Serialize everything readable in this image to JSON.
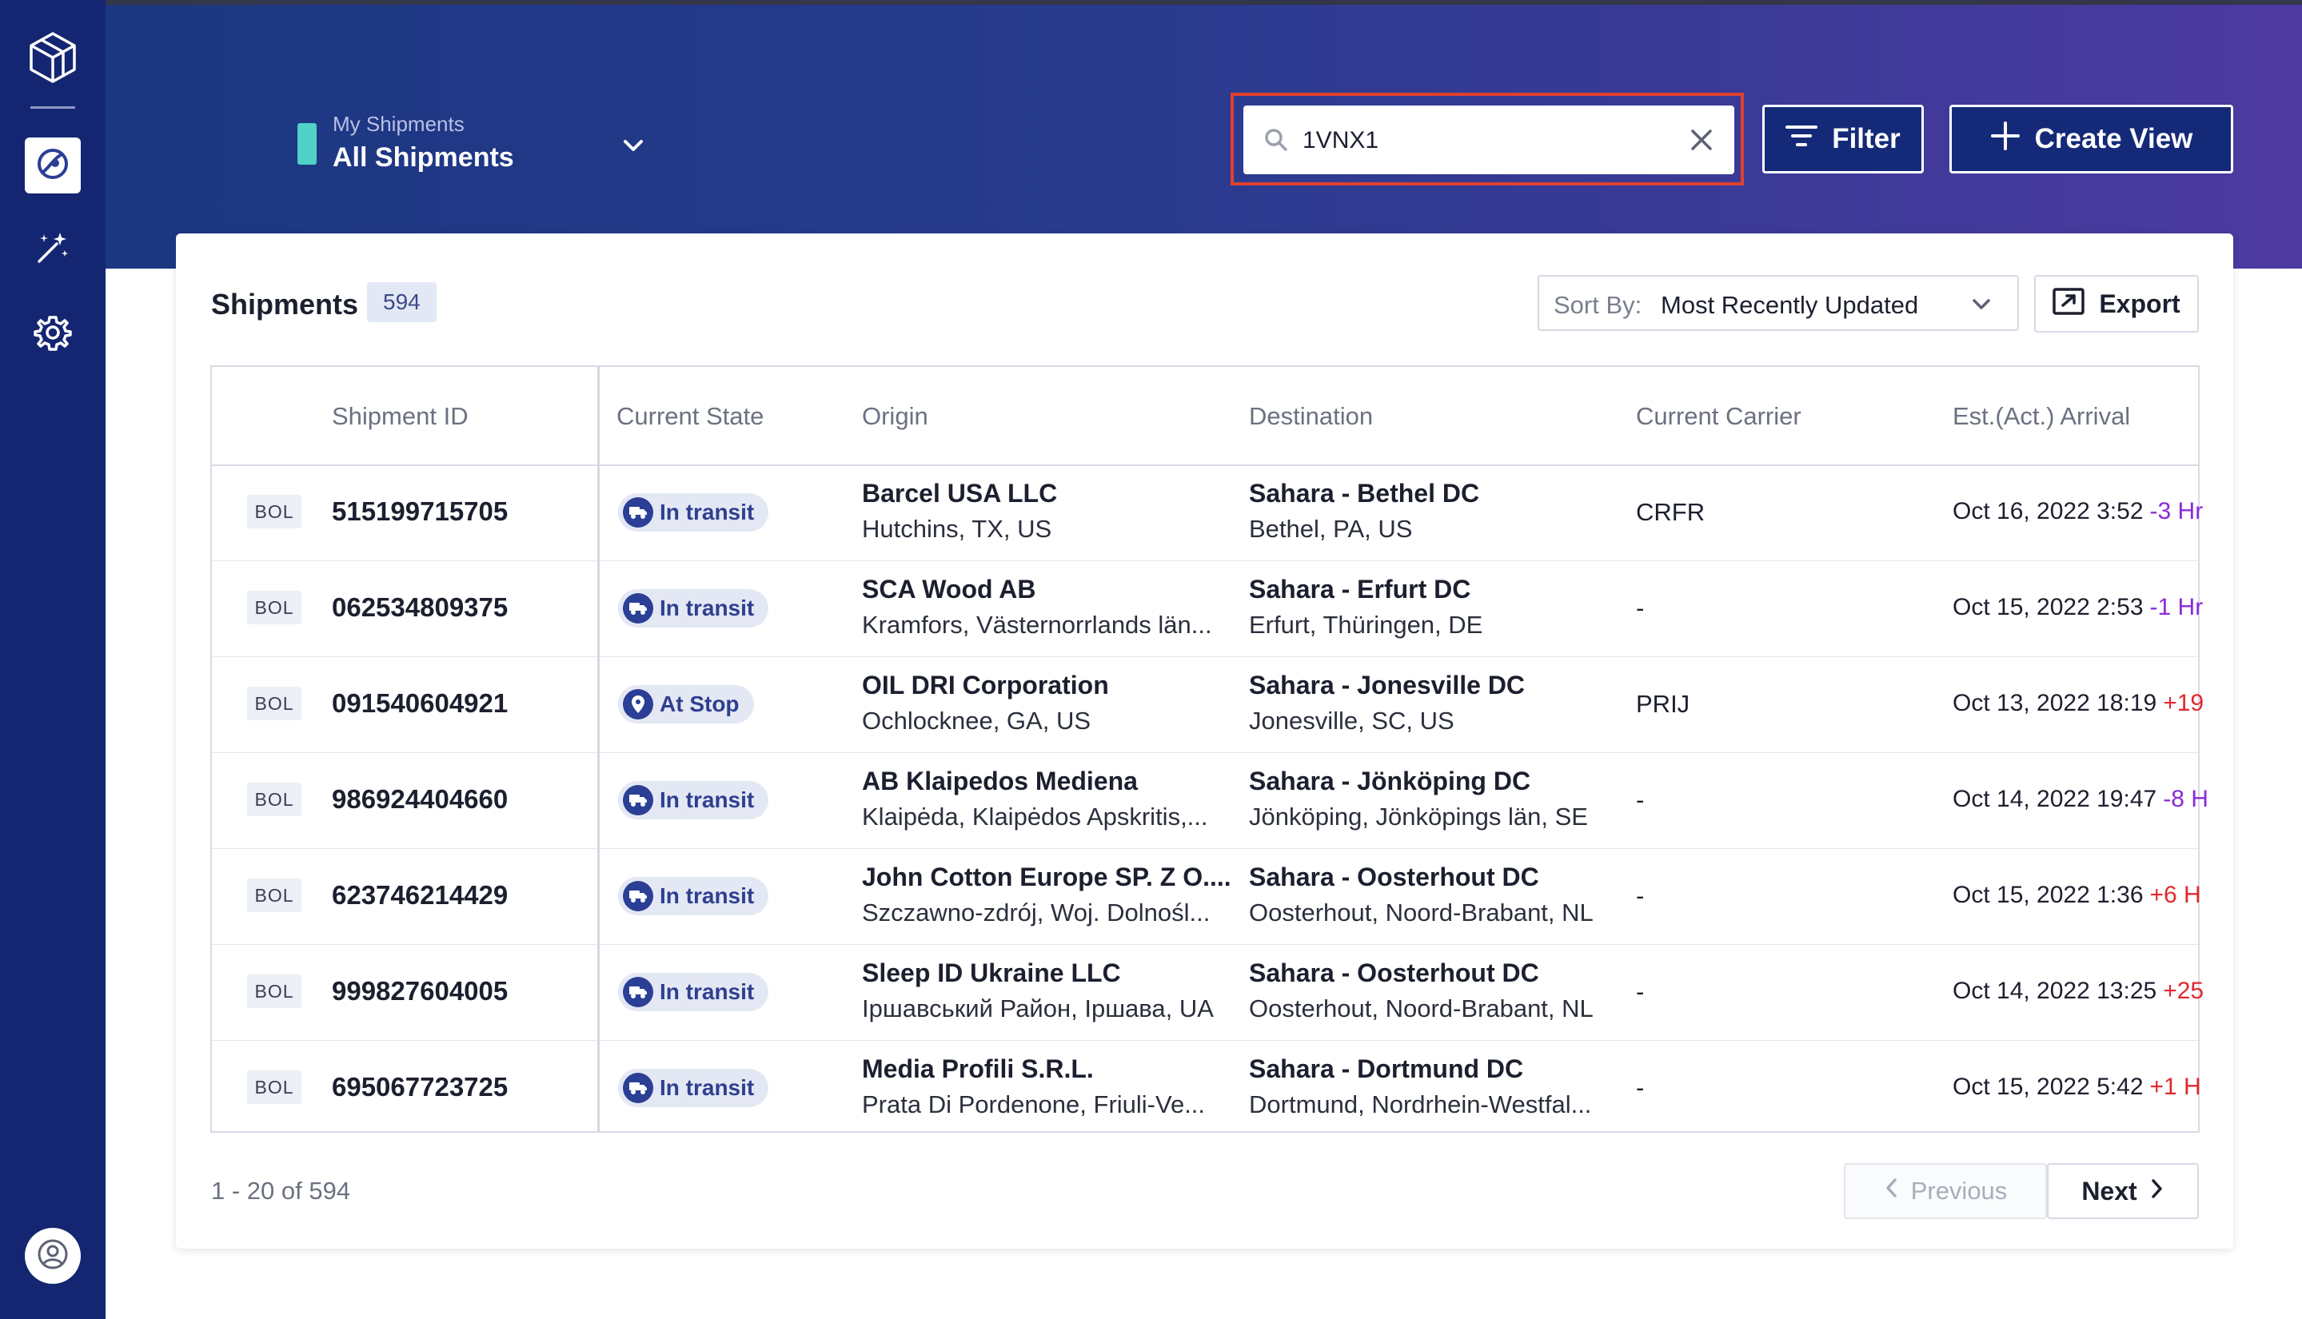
{
  "header": {
    "view_subtitle": "My Shipments",
    "view_title": "All Shipments",
    "search": {
      "value": "1VNX1",
      "placeholder": ""
    },
    "filter_label": "Filter",
    "create_view_label": "Create View"
  },
  "shipments": {
    "title": "Shipments",
    "count": "594",
    "sort_label": "Sort By:",
    "sort_value": "Most Recently Updated",
    "export_label": "Export"
  },
  "table": {
    "columns": [
      "Shipment ID",
      "Current State",
      "Origin",
      "Destination",
      "Current Carrier",
      "Est.(Act.) Arrival"
    ],
    "rows": [
      {
        "type": "BOL",
        "id": "515199715705",
        "state": "In transit",
        "state_icon": "truck-icon",
        "origin_name": "Barcel USA LLC",
        "origin_loc": "Hutchins, TX, US",
        "dest_name": "Sahara - Bethel DC",
        "dest_loc": "Bethel, PA, US",
        "carrier": "CRFR",
        "arrival": "Oct 16, 2022 3:52",
        "delta": "-3 Hr"
      },
      {
        "type": "BOL",
        "id": "062534809375",
        "state": "In transit",
        "state_icon": "truck-icon",
        "origin_name": "SCA Wood AB",
        "origin_loc": "Kramfors, Västernorrlands län...",
        "dest_name": "Sahara - Erfurt DC",
        "dest_loc": "Erfurt, Thüringen, DE",
        "carrier": "-",
        "arrival": "Oct 15, 2022 2:53",
        "delta": "-1 Hr"
      },
      {
        "type": "BOL",
        "id": "091540604921",
        "state": "At Stop",
        "state_icon": "location-pin-icon",
        "origin_name": "OIL DRI Corporation",
        "origin_loc": "Ochlocknee, GA, US",
        "dest_name": "Sahara - Jonesville DC",
        "dest_loc": "Jonesville, SC, US",
        "carrier": "PRIJ",
        "arrival": "Oct 13, 2022 18:19",
        "delta": "+19"
      },
      {
        "type": "BOL",
        "id": "986924404660",
        "state": "In transit",
        "state_icon": "truck-icon",
        "origin_name": "AB Klaipedos Mediena",
        "origin_loc": "Klaipėda, Klaipėdos Apskritis,...",
        "dest_name": "Sahara - Jönköping DC",
        "dest_loc": "Jönköping, Jönköpings län, SE",
        "carrier": "-",
        "arrival": "Oct 14, 2022 19:47",
        "delta": "-8 H"
      },
      {
        "type": "BOL",
        "id": "623746214429",
        "state": "In transit",
        "state_icon": "truck-icon",
        "origin_name": "John Cotton Europe SP. Z O....",
        "origin_loc": "Szczawno-zdrój, Woj. Dolnośl...",
        "dest_name": "Sahara - Oosterhout DC",
        "dest_loc": "Oosterhout, Noord-Brabant, NL",
        "carrier": "-",
        "arrival": "Oct 15, 2022 1:36",
        "delta": "+6 H"
      },
      {
        "type": "BOL",
        "id": "999827604005",
        "state": "In transit",
        "state_icon": "truck-icon",
        "origin_name": "Sleep ID Ukraine LLC",
        "origin_loc": "Іршавський Район, Іршава, UA",
        "dest_name": "Sahara - Oosterhout DC",
        "dest_loc": "Oosterhout, Noord-Brabant, NL",
        "carrier": "-",
        "arrival": "Oct 14, 2022 13:25",
        "delta": "+25"
      },
      {
        "type": "BOL",
        "id": "695067723725",
        "state": "In transit",
        "state_icon": "truck-icon",
        "origin_name": "Media Profili S.R.L.",
        "origin_loc": "Prata Di Pordenone, Friuli-Ve...",
        "dest_name": "Sahara - Dortmund DC",
        "dest_loc": "Dortmund, Nordrhein-Westfal...",
        "carrier": "-",
        "arrival": "Oct 15, 2022 5:42",
        "delta": "+1 H"
      }
    ]
  },
  "pagination": {
    "range_text": "1 - 20 of 594",
    "previous_label": "Previous",
    "next_label": "Next"
  },
  "colors": {
    "sidebar": "#142672",
    "header_start": "#1b3781",
    "header_end": "#4d3aa0",
    "view_accent": "#4fd1c5",
    "search_highlight": "#e0412f",
    "delta_early": "#8a2bd6",
    "delta_late": "#e0282e",
    "state_pill": "#e4e8f4"
  },
  "sidebar": {
    "icons": [
      "logo-cube-icon",
      "shipments-globe-icon",
      "magic-wand-icon",
      "gear-icon",
      "user-avatar-icon"
    ]
  }
}
